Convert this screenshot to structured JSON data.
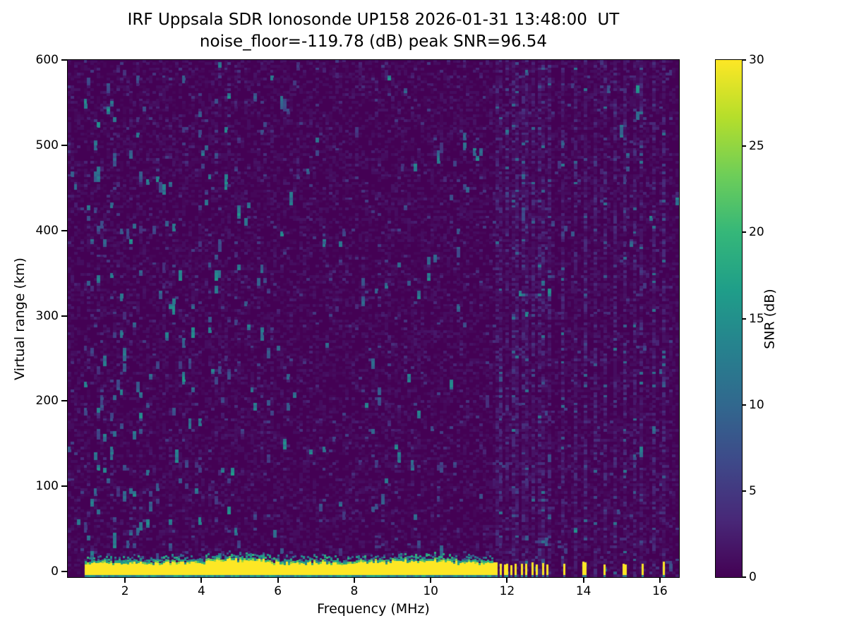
{
  "chart_data": {
    "type": "heatmap",
    "title": "IRF Uppsala SDR Ionosonde UP158 2026-01-31 13:48:00  UT",
    "subtitle": "noise_floor=-119.78 (dB) peak SNR=96.54",
    "station": "UP158",
    "timestamp_ut": "2026-01-31 13:48:00",
    "noise_floor_db": -119.78,
    "peak_snr_db": 96.54,
    "xlabel": "Frequency (MHz)",
    "ylabel": "Virtual range (km)",
    "colorbar_label": "SNR (dB)",
    "xlim": [
      0.5,
      16.5
    ],
    "ylim": [
      -6.6,
      600
    ],
    "xticks": [
      2,
      4,
      6,
      8,
      10,
      12,
      14,
      16
    ],
    "yticks": [
      0,
      100,
      200,
      300,
      400,
      500,
      600
    ],
    "colorbar_ticks": [
      0,
      5,
      10,
      15,
      20,
      25,
      30
    ],
    "colorbar_range": [
      0,
      30
    ],
    "colormap": "viridis",
    "colormap_stops": [
      "#440154",
      "#482878",
      "#3e4989",
      "#31688e",
      "#26828e",
      "#1f9e89",
      "#35b779",
      "#6ece58",
      "#b5de2b",
      "#fde725"
    ],
    "features": {
      "ground_echo_band": {
        "y_min_km": -4,
        "y_max_km": 9,
        "freq_start_mhz": 0.95,
        "freq_end_mhz": 11.62,
        "snr_db": 30
      },
      "bottom_edge_line": {
        "y_km": -5.5,
        "freq_start_mhz": 1.0,
        "freq_end_mhz": 11.62,
        "snr_db": 14
      },
      "dashed_band": {
        "freq_start_mhz": 11.66,
        "freq_end_mhz": 13.15,
        "period_mhz": 0.137,
        "duty": 0.5
      },
      "pulse_freqs_mhz": [
        13.5,
        14.02,
        14.55,
        15.08,
        15.55,
        16.1
      ],
      "interference_columns_mhz": [
        11.72,
        11.86,
        12.0,
        12.14,
        12.28,
        12.42,
        12.56,
        12.7,
        12.84,
        12.98,
        13.12,
        13.5,
        13.78,
        14.02,
        14.3,
        14.55,
        14.82,
        15.08,
        15.32,
        15.55,
        15.82,
        16.1
      ],
      "noise_speckle_db_range": [
        5,
        17
      ],
      "background_db_range": [
        0,
        3
      ]
    }
  }
}
